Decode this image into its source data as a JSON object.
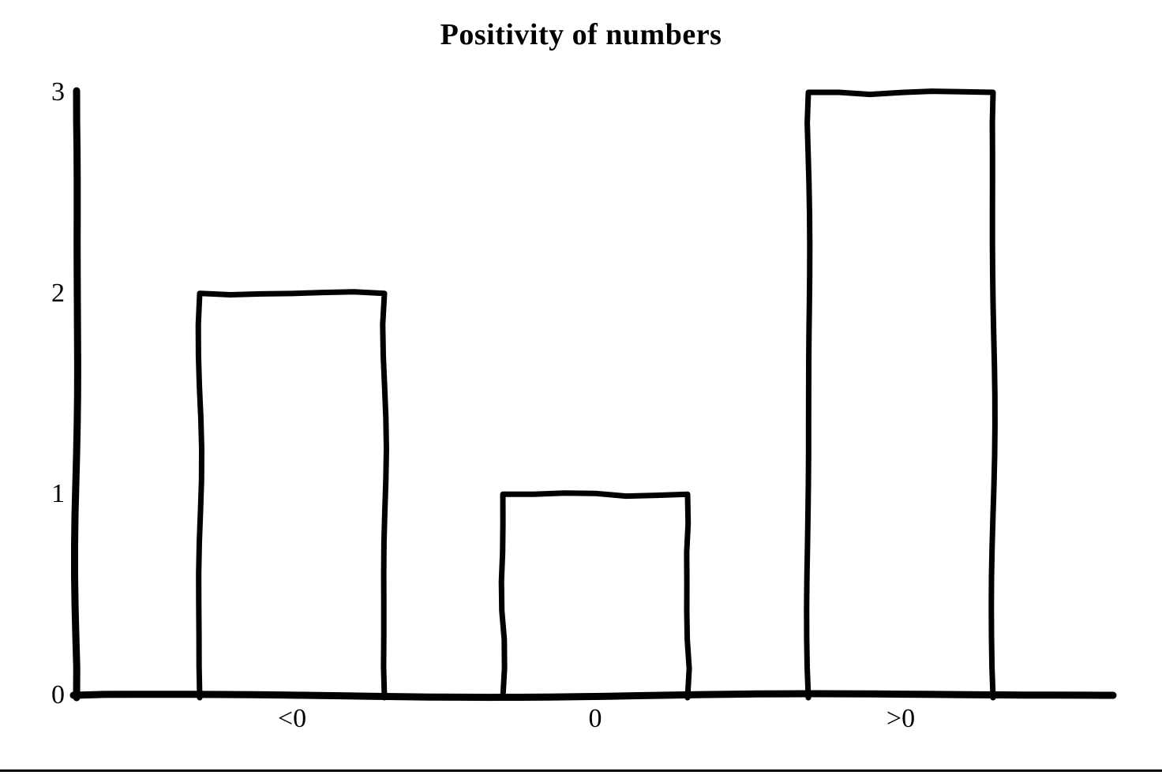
{
  "chart_data": {
    "type": "bar",
    "title": "Positivity of numbers",
    "categories": [
      "<0",
      "0",
      ">0"
    ],
    "values": [
      2,
      1,
      3
    ],
    "xlabel": "",
    "ylabel": "",
    "yticks": [
      0,
      1,
      2,
      3
    ],
    "ylim": [
      0,
      3
    ],
    "grid": false,
    "legend": "none",
    "style": "hand-drawn sketch, unfilled black outlined bars on white"
  },
  "colors": {
    "stroke": "#000000",
    "background": "#ffffff"
  }
}
